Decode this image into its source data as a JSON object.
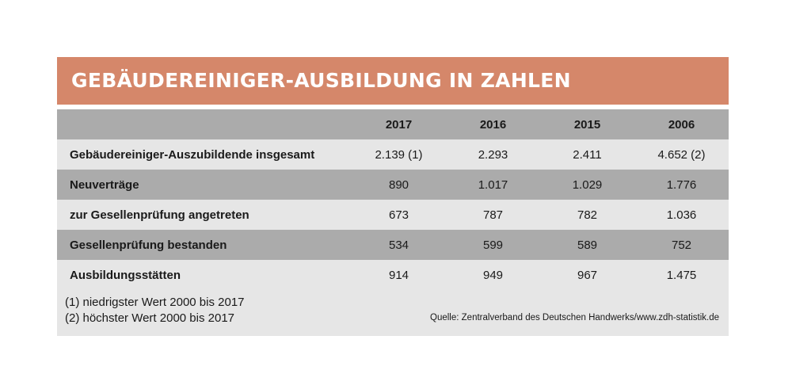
{
  "title": "GEBÄUDEREINIGER-AUSBILDUNG IN ZAHLEN",
  "colors": {
    "title_bar": "#d5876a",
    "dark_row": "#ababab",
    "light_row": "#e6e6e6"
  },
  "chart_data": {
    "type": "table",
    "title": "GEBÄUDEREINIGER-AUSBILDUNG IN ZAHLEN",
    "columns": [
      "2017",
      "2016",
      "2015",
      "2006"
    ],
    "rows": [
      {
        "label": "Gebäudereiniger-Auszubildende insgesamt",
        "values": [
          "2.139 (1)",
          "2.293",
          "2.411",
          "4.652 (2)"
        ]
      },
      {
        "label": "Neuverträge",
        "values": [
          "890",
          "1.017",
          "1.029",
          "1.776"
        ]
      },
      {
        "label": "zur Gesellenprüfung angetreten",
        "values": [
          "673",
          "787",
          "782",
          "1.036"
        ]
      },
      {
        "label": "Gesellenprüfung bestanden",
        "values": [
          "534",
          "599",
          "589",
          "752"
        ]
      },
      {
        "label": "Ausbildungsstätten",
        "values": [
          "914",
          "949",
          "967",
          "1.475"
        ]
      }
    ],
    "footnotes": [
      "(1)  niedrigster Wert 2000 bis 2017",
      "(2)  höchster Wert 2000 bis 2017"
    ],
    "source": "Quelle: Zentralverband des Deutschen Handwerks/www.zdh-statistik.de"
  }
}
